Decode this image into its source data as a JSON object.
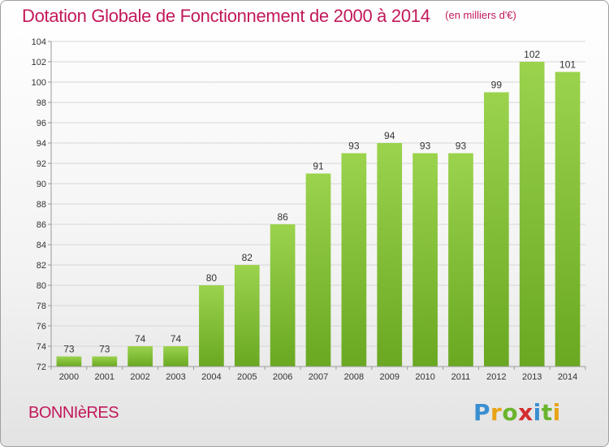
{
  "header": {
    "title": "Dotation Globale de Fonctionnement de 2000 à 2014",
    "unit": "(en milliers d'€)"
  },
  "commune": "BONNIèRES",
  "logo": {
    "letters": [
      "P",
      "r",
      "o",
      "x",
      "i",
      "t",
      "i"
    ],
    "colors": [
      "#3a8fd0",
      "#e8a317",
      "#6ab42d",
      "#d32f2f",
      "#3a8fd0",
      "#6ab42d",
      "#e8a317"
    ]
  },
  "chart_data": {
    "type": "bar",
    "categories": [
      "2000",
      "2001",
      "2002",
      "2003",
      "2004",
      "2005",
      "2006",
      "2007",
      "2008",
      "2009",
      "2010",
      "2011",
      "2012",
      "2013",
      "2014"
    ],
    "values": [
      73,
      73,
      74,
      74,
      80,
      82,
      86,
      91,
      93,
      94,
      93,
      93,
      99,
      102,
      101
    ],
    "ylim": [
      72,
      104
    ],
    "yticks": [
      72,
      74,
      76,
      78,
      80,
      82,
      84,
      86,
      88,
      90,
      92,
      94,
      96,
      98,
      100,
      102,
      104
    ],
    "grid": true,
    "bar_color_top": "#9bd34d",
    "bar_color_bottom": "#6aa822"
  }
}
